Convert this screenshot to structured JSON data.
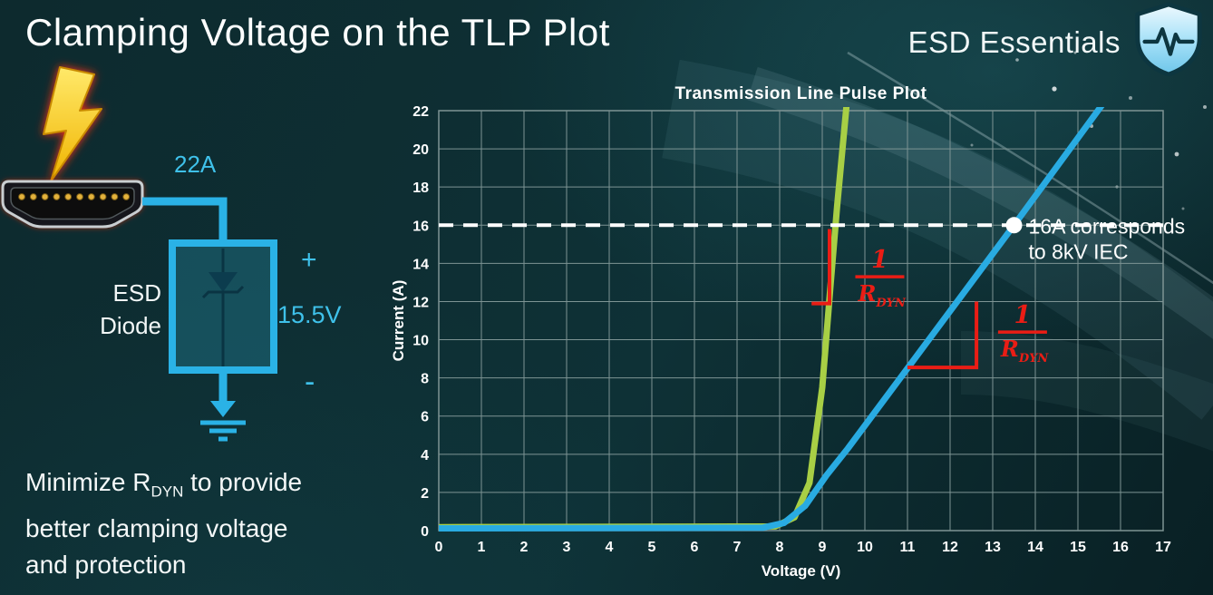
{
  "slide": {
    "title": "Clamping Voltage on the TLP Plot",
    "brand": "ESD Essentials"
  },
  "diagram": {
    "surge_current": "22A",
    "plus": "+",
    "clamp_voltage": "15.5V",
    "minus": "-",
    "device_line1": "ESD",
    "device_line2": "Diode"
  },
  "caption": {
    "l1a": "Minimize R",
    "l1sub": "DYN",
    "l1b": " to provide",
    "l2": "better clamping voltage",
    "l3": "and protection"
  },
  "chart_data": {
    "type": "line",
    "title": "Transmission Line Pulse Plot",
    "xlabel": "Voltage (V)",
    "ylabel": "Current (A)",
    "xlim": [
      0,
      17
    ],
    "ylim": [
      0,
      22
    ],
    "x_ticks": [
      0,
      1,
      2,
      3,
      4,
      5,
      6,
      7,
      8,
      9,
      10,
      11,
      12,
      13,
      14,
      15,
      16,
      17
    ],
    "y_ticks": [
      0,
      2,
      4,
      6,
      8,
      10,
      12,
      14,
      16,
      18,
      20,
      22
    ],
    "grid": true,
    "grid_color": "#7e9494",
    "legend": "none",
    "series": [
      {
        "name": "green-curve-low-rdyn",
        "color": "#a8cf45",
        "points": [
          [
            0,
            0.18
          ],
          [
            7.9,
            0.22
          ],
          [
            8.35,
            0.7
          ],
          [
            8.7,
            2.5
          ],
          [
            9.0,
            7.5
          ],
          [
            9.2,
            13
          ],
          [
            9.35,
            17
          ],
          [
            9.6,
            23
          ]
        ]
      },
      {
        "name": "blue-curve-high-rdyn",
        "color": "#29abe2",
        "points": [
          [
            0,
            0.12
          ],
          [
            7.6,
            0.15
          ],
          [
            8.1,
            0.4
          ],
          [
            8.6,
            1.3
          ],
          [
            9.1,
            2.9
          ],
          [
            9.6,
            4.3
          ],
          [
            13.5,
            16
          ],
          [
            15.6,
            22.4
          ]
        ]
      }
    ],
    "reference_line": {
      "y": 16,
      "color": "#ffffff",
      "style": "dashed"
    },
    "marker_point": {
      "x": 13.5,
      "y": 16
    },
    "point_annotation": {
      "lines": [
        "16A corresponds",
        "to 8kV IEC"
      ]
    },
    "annotation_color": "#ea1d15",
    "slope_markers": [
      {
        "points": [
          [
            8.75,
            11.9
          ],
          [
            9.17,
            11.9
          ],
          [
            9.17,
            15.8
          ]
        ]
      },
      {
        "points": [
          [
            11.0,
            8.55
          ],
          [
            12.62,
            8.55
          ],
          [
            12.62,
            12.0
          ]
        ]
      }
    ],
    "fractions": [
      {
        "x": 10.35,
        "y": 13.3,
        "numerator": "1",
        "denominator": "R",
        "denominator_sub": "DYN"
      },
      {
        "x": 13.7,
        "y": 10.4,
        "numerator": "1",
        "denominator": "R",
        "denominator_sub": "DYN"
      }
    ]
  }
}
